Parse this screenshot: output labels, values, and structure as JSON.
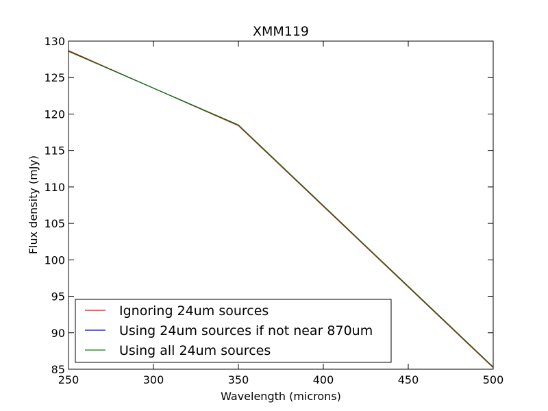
{
  "chart_data": {
    "type": "line",
    "title": "XMM119",
    "xlabel": "Wavelength (microns)",
    "ylabel": "Flux density (mJy)",
    "xlim": [
      250,
      500
    ],
    "ylim": [
      85,
      130
    ],
    "xticks": [
      "250",
      "300",
      "350",
      "400",
      "450",
      "500"
    ],
    "yticks": [
      "85",
      "90",
      "95",
      "100",
      "105",
      "110",
      "115",
      "120",
      "125",
      "130"
    ],
    "grid": false,
    "legend_position": "lower-left",
    "series": [
      {
        "name": "Ignoring 24um sources",
        "color": "#ff0000",
        "x": [
          250,
          350,
          500
        ],
        "y": [
          128.7,
          118.4,
          85.2
        ]
      },
      {
        "name": "Using 24um sources if not near 870um",
        "color": "#0000ff",
        "x": [
          250,
          350,
          500
        ],
        "y": [
          128.6,
          118.5,
          85.3
        ]
      },
      {
        "name": "Using all 24um sources",
        "color": "#008000",
        "x": [
          250,
          350,
          500
        ],
        "y": [
          128.6,
          118.5,
          85.3
        ]
      }
    ]
  }
}
